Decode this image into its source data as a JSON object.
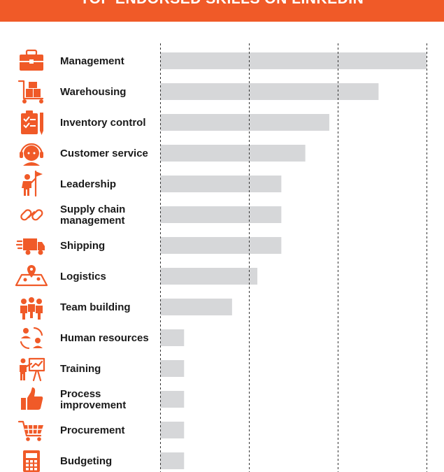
{
  "colors": {
    "accent": "#f05a28",
    "bar": "#d6d7d9",
    "grid": "#333333",
    "text": "#1a1a1a"
  },
  "chart_data": {
    "type": "bar",
    "orientation": "horizontal",
    "title": "TOP ENDORSED SKILLS ON LINKEDIN",
    "xlabel": "",
    "ylabel": "",
    "xlim": [
      0,
      100
    ],
    "gridlines": [
      0,
      33.3,
      66.7,
      100
    ],
    "grid": true,
    "legend": "none",
    "categories": [
      {
        "label": [
          "Management"
        ],
        "icon": "briefcase-icon",
        "value": 100
      },
      {
        "label": [
          "Warehousing"
        ],
        "icon": "hand-truck-boxes-icon",
        "value": 82
      },
      {
        "label": [
          "Inventory control"
        ],
        "icon": "clipboard-checklist-icon",
        "value": 63.5
      },
      {
        "label": [
          "Customer service"
        ],
        "icon": "headset-agent-icon",
        "value": 54.5
      },
      {
        "label": [
          "Leadership"
        ],
        "icon": "person-flag-icon",
        "value": 45.5
      },
      {
        "label": [
          "Supply chain",
          "management"
        ],
        "icon": "chain-link-icon",
        "value": 45.5
      },
      {
        "label": [
          "Shipping"
        ],
        "icon": "delivery-truck-icon",
        "value": 45.5
      },
      {
        "label": [
          "Logistics"
        ],
        "icon": "map-pins-icon",
        "value": 36.5
      },
      {
        "label": [
          "Team building"
        ],
        "icon": "team-people-icon",
        "value": 27
      },
      {
        "label": [
          "Human resources"
        ],
        "icon": "people-exchange-icon",
        "value": 9
      },
      {
        "label": [
          "Training"
        ],
        "icon": "presentation-board-icon",
        "value": 9
      },
      {
        "label": [
          "Process",
          "improvement"
        ],
        "icon": "thumbs-up-icon",
        "value": 9
      },
      {
        "label": [
          "Procurement"
        ],
        "icon": "shopping-cart-icon",
        "value": 9
      },
      {
        "label": [
          "Budgeting"
        ],
        "icon": "calculator-icon",
        "value": 9
      }
    ]
  }
}
